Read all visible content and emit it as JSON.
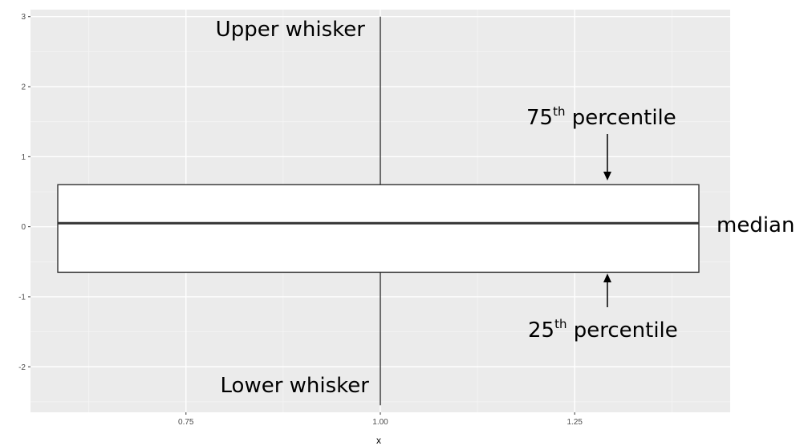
{
  "chart_data": {
    "type": "box",
    "title": "",
    "xlabel": "x",
    "ylabel": "",
    "xlim": [
      0.55,
      1.45
    ],
    "ylim": [
      -2.65,
      3.1
    ],
    "x_ticks": [
      0.75,
      1.0,
      1.25
    ],
    "x_tick_labels": [
      "0.75",
      "1.00",
      "1.25"
    ],
    "y_ticks": [
      -2,
      -1,
      0,
      1,
      2,
      3
    ],
    "y_tick_labels": [
      "-2",
      "-1",
      "0",
      "1",
      "2",
      "3"
    ],
    "grid": true,
    "box": {
      "x": 1.0,
      "x_extent": [
        0.55,
        1.45
      ],
      "lower_whisker": -2.55,
      "q1": -0.65,
      "median": 0.05,
      "q3": 0.6,
      "upper_whisker": 3.0
    },
    "annotations": {
      "upper_whisker": "Upper whisker",
      "lower_whisker": "Lower whisker",
      "q3_base": "75",
      "q3_sup": "th",
      "q3_rest": " percentile",
      "q1_base": "25",
      "q1_sup": "th",
      "q1_rest": " percentile",
      "median": "median"
    },
    "colors": {
      "panel": "#ebebeb",
      "grid_major": "#ffffff",
      "box_fill": "#ffffff",
      "box_stroke": "#333333",
      "tick_text": "#4d4d4d"
    }
  }
}
